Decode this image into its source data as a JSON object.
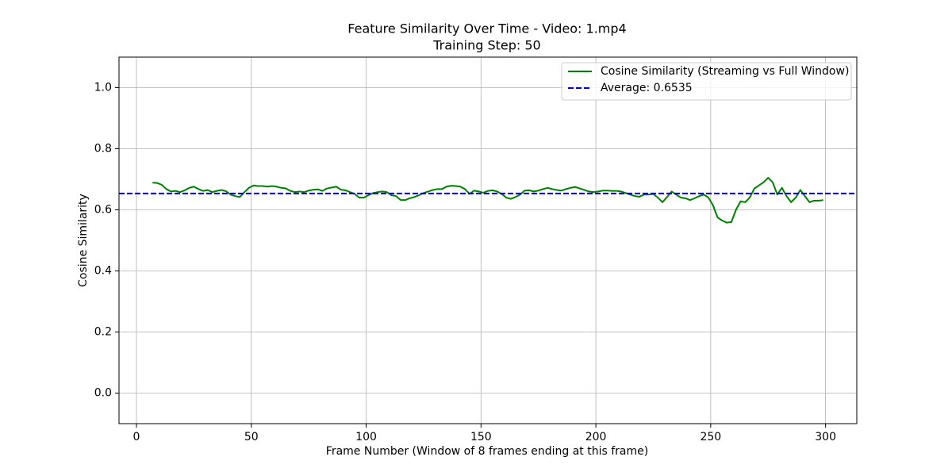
{
  "chart_data": {
    "type": "line",
    "title": "Feature Similarity Over Time - Video: 1.mp4",
    "subtitle": "Training Step: 50",
    "x_label": "Frame Number (Window of 8 frames ending at this frame)",
    "y_label": "Cosine Similarity",
    "x": [
      7,
      9,
      11,
      13,
      15,
      17,
      19,
      21,
      23,
      25,
      27,
      29,
      31,
      33,
      35,
      37,
      39,
      41,
      43,
      45,
      47,
      49,
      51,
      53,
      55,
      57,
      59,
      61,
      63,
      65,
      67,
      69,
      71,
      73,
      75,
      77,
      79,
      81,
      83,
      85,
      87,
      89,
      91,
      93,
      95,
      97,
      99,
      101,
      103,
      105,
      107,
      109,
      111,
      113,
      115,
      117,
      119,
      121,
      123,
      125,
      127,
      129,
      131,
      133,
      135,
      137,
      139,
      141,
      143,
      145,
      147,
      149,
      151,
      153,
      155,
      157,
      159,
      161,
      163,
      165,
      167,
      169,
      171,
      173,
      175,
      177,
      179,
      181,
      183,
      185,
      187,
      189,
      191,
      193,
      195,
      197,
      199,
      201,
      203,
      205,
      207,
      209,
      211,
      213,
      215,
      217,
      219,
      221,
      223,
      225,
      227,
      229,
      231,
      233,
      235,
      237,
      239,
      241,
      243,
      245,
      247,
      249,
      251,
      253,
      255,
      257,
      259,
      261,
      263,
      265,
      267,
      269,
      271,
      273,
      275,
      277,
      279,
      281,
      283,
      285,
      287,
      289,
      291,
      293,
      295,
      297,
      299
    ],
    "series": [
      {
        "name": "Cosine Similarity (Streaming vs Full Window)",
        "color": "#008000",
        "values": [
          0.689,
          0.688,
          0.682,
          0.668,
          0.66,
          0.662,
          0.658,
          0.664,
          0.672,
          0.676,
          0.668,
          0.662,
          0.665,
          0.658,
          0.662,
          0.665,
          0.661,
          0.65,
          0.645,
          0.642,
          0.658,
          0.672,
          0.68,
          0.678,
          0.678,
          0.676,
          0.678,
          0.676,
          0.672,
          0.67,
          0.662,
          0.658,
          0.66,
          0.658,
          0.663,
          0.666,
          0.667,
          0.662,
          0.67,
          0.673,
          0.676,
          0.666,
          0.664,
          0.658,
          0.652,
          0.64,
          0.64,
          0.648,
          0.655,
          0.658,
          0.66,
          0.658,
          0.648,
          0.645,
          0.632,
          0.632,
          0.638,
          0.642,
          0.648,
          0.655,
          0.66,
          0.665,
          0.668,
          0.668,
          0.676,
          0.679,
          0.678,
          0.676,
          0.668,
          0.652,
          0.663,
          0.66,
          0.656,
          0.662,
          0.664,
          0.66,
          0.652,
          0.64,
          0.636,
          0.642,
          0.65,
          0.663,
          0.664,
          0.66,
          0.663,
          0.668,
          0.672,
          0.668,
          0.665,
          0.663,
          0.668,
          0.672,
          0.675,
          0.67,
          0.665,
          0.66,
          0.658,
          0.66,
          0.663,
          0.663,
          0.662,
          0.662,
          0.66,
          0.655,
          0.65,
          0.645,
          0.643,
          0.65,
          0.65,
          0.652,
          0.64,
          0.625,
          0.642,
          0.66,
          0.65,
          0.64,
          0.638,
          0.632,
          0.638,
          0.645,
          0.65,
          0.64,
          0.615,
          0.575,
          0.565,
          0.558,
          0.56,
          0.6,
          0.628,
          0.625,
          0.64,
          0.67,
          0.68,
          0.69,
          0.705,
          0.69,
          0.65,
          0.672,
          0.645,
          0.625,
          0.64,
          0.665,
          0.645,
          0.625,
          0.63,
          0.63,
          0.632
        ]
      }
    ],
    "average": {
      "name": "Average: 0.6535",
      "value": 0.6535,
      "color": "#0000cc"
    },
    "xlim": [
      -7.6,
      313.6
    ],
    "ylim": [
      -0.1,
      1.1
    ],
    "xticks": [
      0,
      50,
      100,
      150,
      200,
      250,
      300
    ],
    "yticks": [
      {
        "value": 0,
        "label": "0.0"
      },
      0.2,
      0.4,
      0.6,
      0.8,
      {
        "value": 1,
        "label": "1.0"
      }
    ],
    "grid": true,
    "legend": "upper right"
  }
}
